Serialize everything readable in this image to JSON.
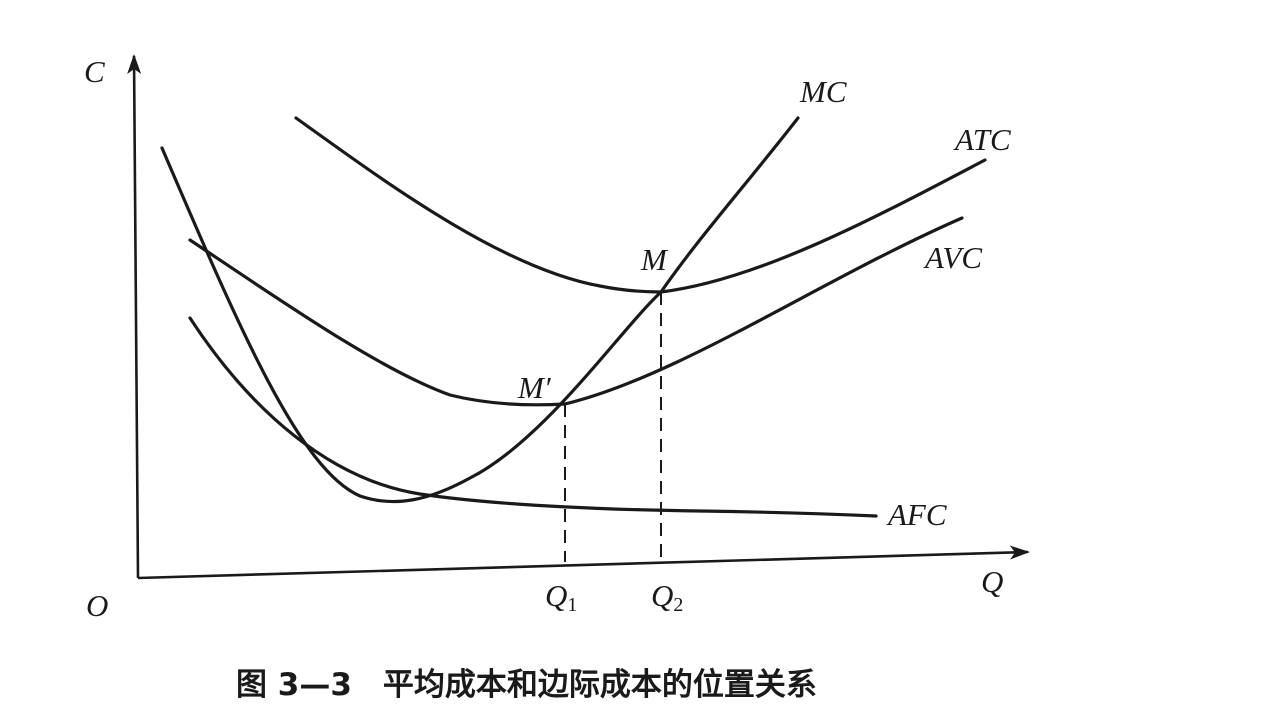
{
  "diagram": {
    "axes": {
      "y_label": "C",
      "x_label": "Q",
      "origin_label": "O"
    },
    "curves": [
      {
        "id": "mc",
        "label": "MC"
      },
      {
        "id": "atc",
        "label": "ATC"
      },
      {
        "id": "avc",
        "label": "AVC"
      },
      {
        "id": "afc",
        "label": "AFC"
      }
    ],
    "points": [
      {
        "id": "m",
        "label": "M"
      },
      {
        "id": "m-prime",
        "label": "M′"
      }
    ],
    "quantities": [
      {
        "id": "q1",
        "base": "Q",
        "subscript": "1"
      },
      {
        "id": "q2",
        "base": "Q",
        "subscript": "2"
      }
    ],
    "caption": "图 3—3　平均成本和边际成本的位置关系"
  }
}
